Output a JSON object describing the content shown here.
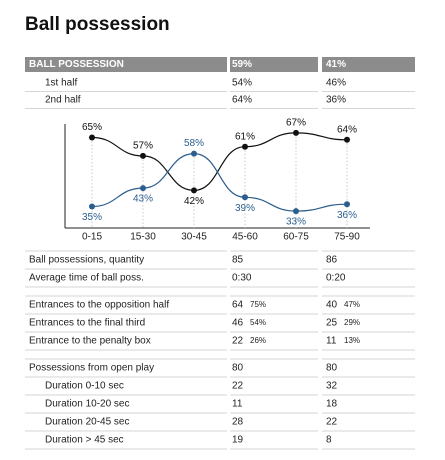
{
  "title": "Ball possession",
  "header": [
    "BALL POSSESSION",
    "59%",
    "41%"
  ],
  "halves": [
    [
      "1st half",
      "54%",
      "46%"
    ],
    [
      "2nd half",
      "64%",
      "36%"
    ]
  ],
  "chart_data": {
    "type": "line",
    "categories": [
      "0-15",
      "15-30",
      "30-45",
      "45-60",
      "60-75",
      "75-90"
    ],
    "ylim": [
      30,
      70
    ],
    "series": [
      {
        "color": "#111111",
        "values": [
          65,
          57,
          42,
          61,
          67,
          64
        ],
        "value_labels": [
          "65%",
          "57%",
          "42%",
          "61%",
          "67%",
          "64%"
        ]
      },
      {
        "color": "#2b5d8e",
        "values": [
          35,
          43,
          58,
          39,
          33,
          36
        ],
        "value_labels": [
          "35%",
          "43%",
          "58%",
          "39%",
          "33%",
          "36%"
        ]
      }
    ]
  },
  "stats": [
    [
      [
        "Ball possessions, quantity",
        "85",
        "86"
      ],
      [
        "Average time of ball poss.",
        "0:30",
        "0:20"
      ]
    ],
    [
      [
        "Entrances to the opposition half",
        "64",
        "75%",
        "40",
        "47%"
      ],
      [
        "Entrances to the final third",
        "46",
        "54%",
        "25",
        "29%"
      ],
      [
        "Entrance to the penalty box",
        "22",
        "26%",
        "11",
        "13%"
      ]
    ],
    [
      [
        "Possessions from open play",
        "80",
        "80"
      ],
      [
        "Duration 0-10 sec",
        "22",
        "32"
      ],
      [
        "Duration 10-20 sec",
        "11",
        "18"
      ],
      [
        "Duration 20-45 sec",
        "28",
        "22"
      ],
      [
        "Duration > 45 sec",
        "19",
        "8"
      ]
    ]
  ]
}
